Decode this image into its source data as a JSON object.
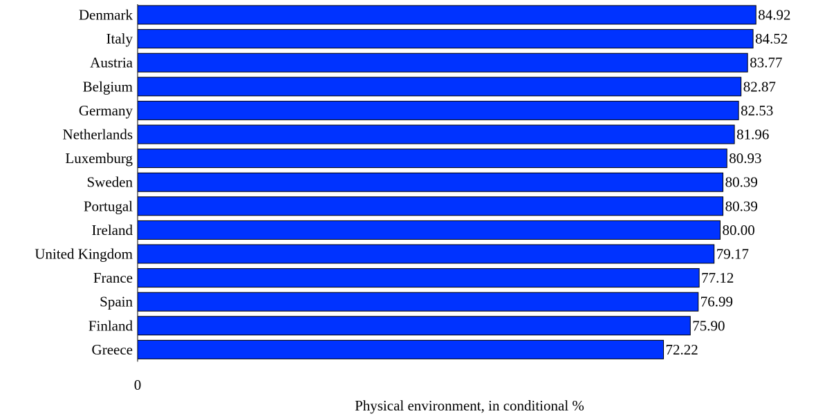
{
  "chart_data": {
    "type": "bar",
    "orientation": "horizontal",
    "title": "",
    "xlabel": "Physical environment, in conditional %",
    "ylabel": "",
    "categories": [
      "Denmark",
      "Italy",
      "Austria",
      "Belgium",
      "Germany",
      "Netherlands",
      "Luxemburg",
      "Sweden",
      "Portugal",
      "Ireland",
      "United Kingdom",
      "France",
      "Spain",
      "Finland",
      "Greece"
    ],
    "values": [
      84.92,
      84.52,
      83.77,
      82.87,
      82.53,
      81.96,
      80.93,
      80.39,
      80.39,
      80.0,
      79.17,
      77.12,
      76.99,
      75.9,
      72.22
    ],
    "value_labels": [
      "84.92",
      "84.52",
      "83.77",
      "82.87",
      "82.53",
      "81.96",
      "80.93",
      "80.39",
      "80.39",
      "80.00",
      "79.17",
      "77.12",
      "76.99",
      "75.90",
      "72.22"
    ],
    "xlim": [
      0,
      88.5
    ],
    "x_tick_labels": [
      "0"
    ],
    "bar_color": "#0033ff",
    "bar_edge_color": "#000000",
    "grid": false,
    "legend": "none"
  }
}
